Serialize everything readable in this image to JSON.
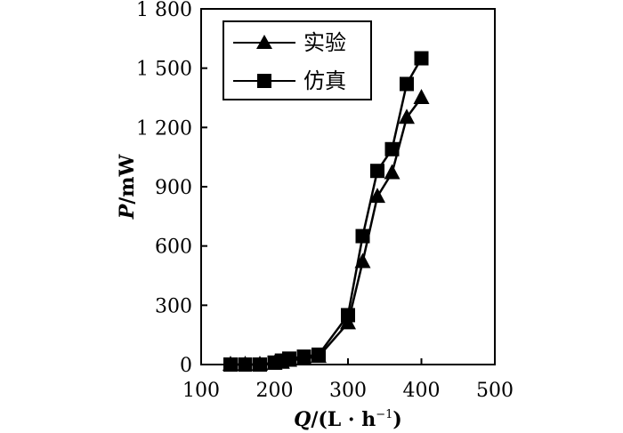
{
  "chart_data": {
    "type": "line",
    "xlabel": "Q/(L · h⁻¹)",
    "xlabel_parts": {
      "symbol": "Q",
      "unit_prefix": "/(L · h",
      "exponent": "−1",
      "unit_suffix": ")"
    },
    "ylabel": "P/mW",
    "ylabel_parts": {
      "symbol": "P",
      "unit": "/mW"
    },
    "xlim": [
      100,
      500
    ],
    "ylim": [
      0,
      1800
    ],
    "x_ticks": [
      100,
      200,
      300,
      400,
      500
    ],
    "x_tick_labels": [
      "100",
      "200",
      "300",
      "400",
      "500"
    ],
    "y_ticks": [
      0,
      300,
      600,
      900,
      1200,
      1500,
      1800
    ],
    "y_tick_labels": [
      "0",
      "300",
      "600",
      "900",
      "1 200",
      "1 500",
      "1 800"
    ],
    "grid": false,
    "legend_position": "top-left",
    "series": [
      {
        "name": "实验",
        "marker": "triangle",
        "color": "#000000",
        "x": [
          140,
          160,
          180,
          200,
          210,
          220,
          240,
          260,
          300,
          320,
          340,
          360,
          380,
          400
        ],
        "y": [
          0,
          0,
          0,
          5,
          10,
          20,
          30,
          40,
          210,
          520,
          850,
          970,
          1250,
          1350
        ]
      },
      {
        "name": "仿真",
        "marker": "square",
        "color": "#000000",
        "x": [
          140,
          160,
          180,
          200,
          210,
          220,
          240,
          260,
          300,
          320,
          340,
          360,
          380,
          400
        ],
        "y": [
          0,
          0,
          0,
          10,
          20,
          30,
          40,
          50,
          250,
          650,
          980,
          1090,
          1420,
          1550
        ]
      }
    ]
  }
}
